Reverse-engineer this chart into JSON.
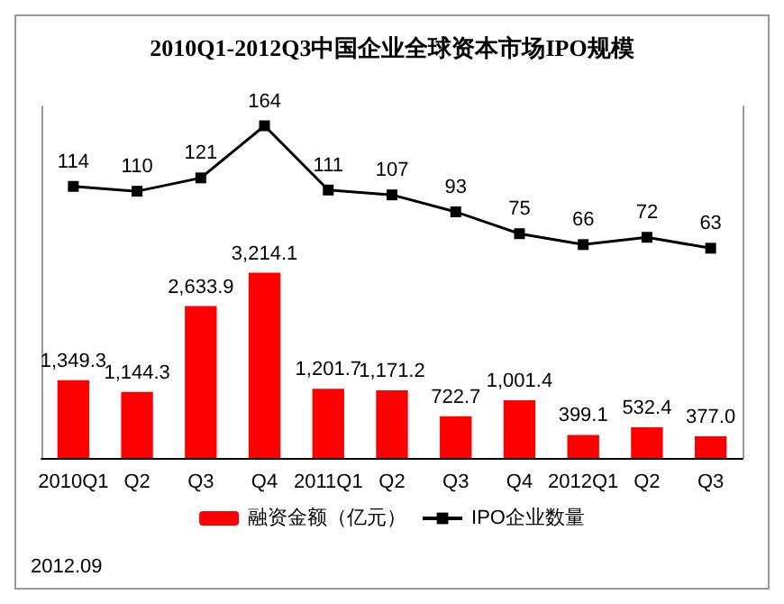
{
  "chart_data": {
    "type": "bar",
    "title": "2010Q1-2012Q3中国企业全球资本市场IPO规模",
    "categories": [
      "2010Q1",
      "Q2",
      "Q3",
      "Q4",
      "2011Q1",
      "Q2",
      "Q3",
      "Q4",
      "2012Q1",
      "Q2",
      "Q3"
    ],
    "series": [
      {
        "name": "融资金额（亿元）",
        "color": "#ff0000",
        "values": [
          1349.3,
          1144.3,
          2633.9,
          3214.1,
          1201.7,
          1171.2,
          722.7,
          1001.4,
          399.1,
          532.4,
          377.0
        ],
        "value_labels": [
          "1,349.3",
          "1,144.3",
          "2,633.9",
          "3,214.1",
          "1,201.7",
          "1,171.2",
          "722.7",
          "1,001.4",
          "399.1",
          "532.4",
          "377.0"
        ]
      },
      {
        "name": "IPO企业数量",
        "type": "line",
        "axis": "y2",
        "color": "#000000",
        "values": [
          114,
          110,
          121,
          164,
          111,
          107,
          93,
          75,
          66,
          72,
          63
        ],
        "value_labels": [
          "114",
          "110",
          "121",
          "164",
          "111",
          "107",
          "93",
          "75",
          "66",
          "72",
          "63"
        ]
      }
    ],
    "ylim": [
      0,
      6100
    ],
    "y2lim": [
      -110,
      180
    ],
    "marker": "square",
    "legend": "bottom",
    "annotations": [
      "2012.09"
    ]
  }
}
